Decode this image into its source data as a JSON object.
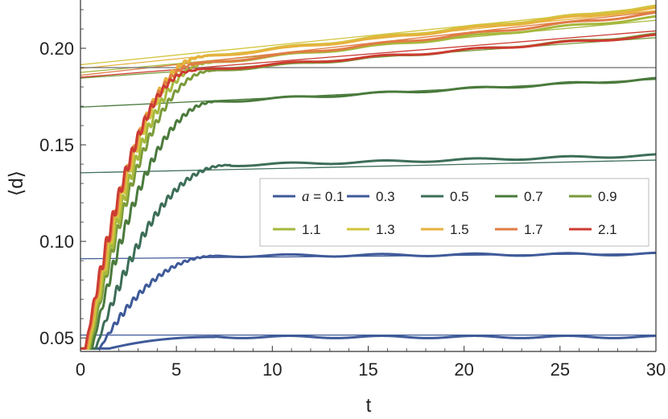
{
  "chart_data": {
    "type": "line",
    "xlabel": "t",
    "ylabel": "⟨d⟩",
    "xlim": [
      0,
      30
    ],
    "ylim": [
      0.043,
      0.225
    ],
    "x_ticks": [
      "0",
      "5",
      "10",
      "15",
      "20",
      "25",
      "30"
    ],
    "y_ticks": [
      "0.05",
      "0.10",
      "0.15",
      "0.20"
    ],
    "y_tick_values": [
      0.05,
      0.1,
      0.15,
      0.2
    ],
    "x_tick_values": [
      0,
      5,
      10,
      15,
      20,
      25,
      30
    ],
    "legend_prefix": "a = ",
    "legend_position": "center-right",
    "grid": false,
    "series": [
      {
        "name": "0.1",
        "color": "#3f5a99",
        "onset": 1.5,
        "rise_end": 7.0,
        "plateau": 0.0505,
        "end": 0.0505,
        "fit_intercept": 0.0515,
        "fit_slope": 0.0,
        "osc": 0.0
      },
      {
        "name": "0.3",
        "color": "#3f5a99",
        "onset": 1.0,
        "rise_end": 7.2,
        "plateau": 0.0925,
        "end": 0.0935,
        "fit_intercept": 0.091,
        "fit_slope": 9e-05,
        "osc": 0.002
      },
      {
        "name": "0.5",
        "color": "#3d6e58",
        "onset": 0.8,
        "rise_end": 7.8,
        "plateau": 0.1395,
        "end": 0.1445,
        "fit_intercept": 0.1355,
        "fit_slope": 0.00022,
        "osc": 0.0035
      },
      {
        "name": "0.7",
        "color": "#4a7a3c",
        "onset": 0.6,
        "rise_end": 7.2,
        "plateau": 0.1725,
        "end": 0.184,
        "fit_intercept": 0.1695,
        "fit_slope": 0.00048,
        "osc": 0.004
      },
      {
        "name": "0.9",
        "color": "#7a9a3a",
        "onset": 0.5,
        "rise_end": 7.0,
        "plateau": 0.1885,
        "end": 0.207,
        "fit_intercept": 0.1845,
        "fit_slope": 0.0007,
        "osc": 0.004
      },
      {
        "name": "1.1",
        "color": "#a6b83c",
        "onset": 0.45,
        "rise_end": 6.8,
        "plateau": 0.1925,
        "end": 0.216,
        "fit_intercept": 0.1875,
        "fit_slope": 0.0009,
        "osc": 0.005
      },
      {
        "name": "1.3",
        "color": "#d2c43e",
        "onset": 0.4,
        "rise_end": 6.6,
        "plateau": 0.196,
        "end": 0.2215,
        "fit_intercept": 0.1915,
        "fit_slope": 0.001,
        "osc": 0.005
      },
      {
        "name": "1.5",
        "color": "#e6b23e",
        "onset": 0.35,
        "rise_end": 6.4,
        "plateau": 0.1955,
        "end": 0.2205,
        "fit_intercept": 0.1895,
        "fit_slope": 0.001,
        "osc": 0.005
      },
      {
        "name": "1.7",
        "color": "#e07c45",
        "onset": 0.3,
        "rise_end": 6.2,
        "plateau": 0.192,
        "end": 0.218,
        "fit_intercept": 0.186,
        "fit_slope": 0.0011,
        "osc": 0.005
      },
      {
        "name": "2.1",
        "color": "#cc3b32",
        "onset": 0.25,
        "rise_end": 6.0,
        "plateau": 0.1885,
        "end": 0.2065,
        "fit_intercept": 0.185,
        "fit_slope": 0.0008,
        "osc": 0.005
      }
    ],
    "reference_line": {
      "value": 0.19,
      "color": "#7a7a7a"
    }
  }
}
